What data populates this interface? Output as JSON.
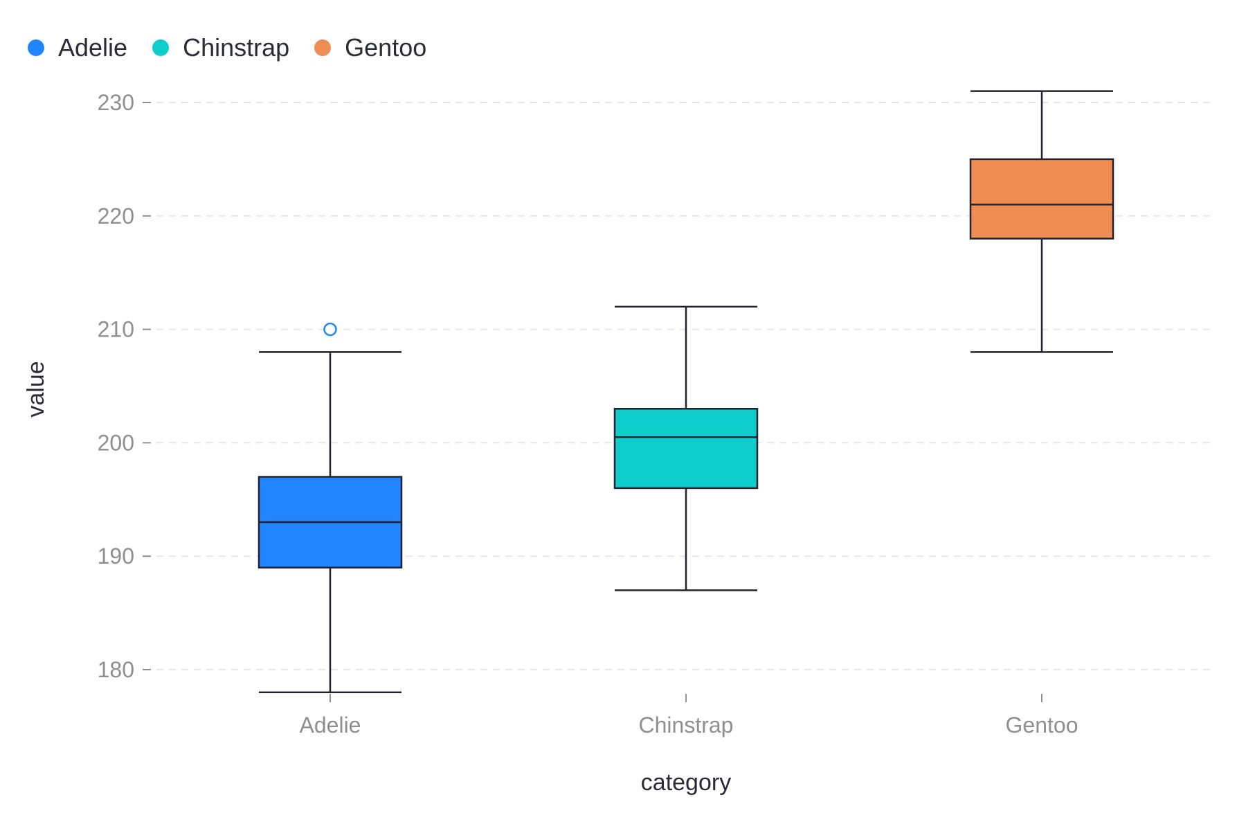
{
  "chart_data": {
    "type": "box",
    "xlabel": "category",
    "ylabel": "value",
    "ylim": [
      176,
      232
    ],
    "yticks": [
      180,
      190,
      200,
      210,
      220,
      230
    ],
    "grid": "horizontal dashed",
    "legend_position": "top-left",
    "categories": [
      "Adelie",
      "Chinstrap",
      "Gentoo"
    ],
    "series": [
      {
        "name": "Adelie",
        "color": "#2185ff",
        "min": 178,
        "q1": 189,
        "median": 193,
        "q3": 197,
        "max": 208,
        "outliers": [
          210
        ]
      },
      {
        "name": "Chinstrap",
        "color": "#0fcdcb",
        "min": 187,
        "q1": 196,
        "median": 200.5,
        "q3": 203,
        "max": 212,
        "outliers": []
      },
      {
        "name": "Gentoo",
        "color": "#f08d53",
        "min": 208,
        "q1": 218,
        "median": 221,
        "q3": 225,
        "max": 231,
        "outliers": []
      }
    ]
  }
}
